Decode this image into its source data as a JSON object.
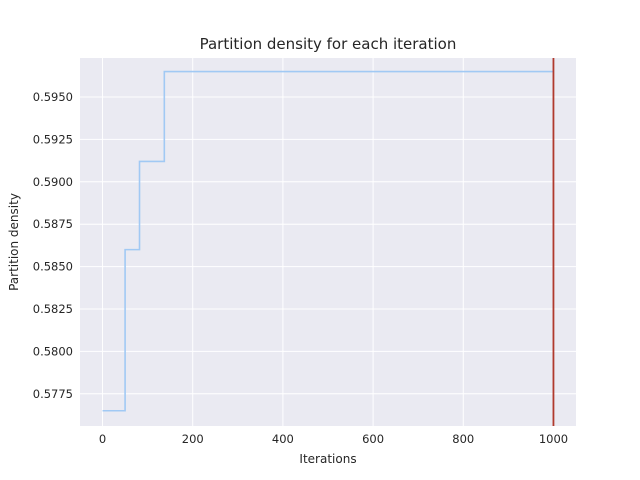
{
  "chart_data": {
    "type": "line",
    "title": "Partition density for each iteration",
    "xlabel": "Iterations",
    "ylabel": "Partition density",
    "xlim": [
      -50,
      1050
    ],
    "ylim": [
      0.5756,
      0.5973
    ],
    "xticks": [
      0,
      200,
      400,
      600,
      800,
      1000
    ],
    "xtick_labels": [
      "0",
      "200",
      "400",
      "600",
      "800",
      "1000"
    ],
    "yticks": [
      0.5775,
      0.58,
      0.5825,
      0.585,
      0.5875,
      0.59,
      0.5925,
      0.595
    ],
    "ytick_labels": [
      "0.5775",
      "0.5800",
      "0.5825",
      "0.5850",
      "0.5875",
      "0.5900",
      "0.5925",
      "0.5950"
    ],
    "grid": true,
    "series": [
      {
        "x": [
          0,
          50,
          50,
          82,
          82,
          137,
          137,
          1000
        ],
        "values": [
          0.5765,
          0.5765,
          0.586,
          0.586,
          0.5912,
          0.5912,
          0.5965,
          0.5965
        ],
        "color": "#a1c9f4",
        "style": "step"
      }
    ],
    "vline": {
      "x": 1000,
      "color": "#b03a2e"
    },
    "background": "#eaeaf2"
  }
}
